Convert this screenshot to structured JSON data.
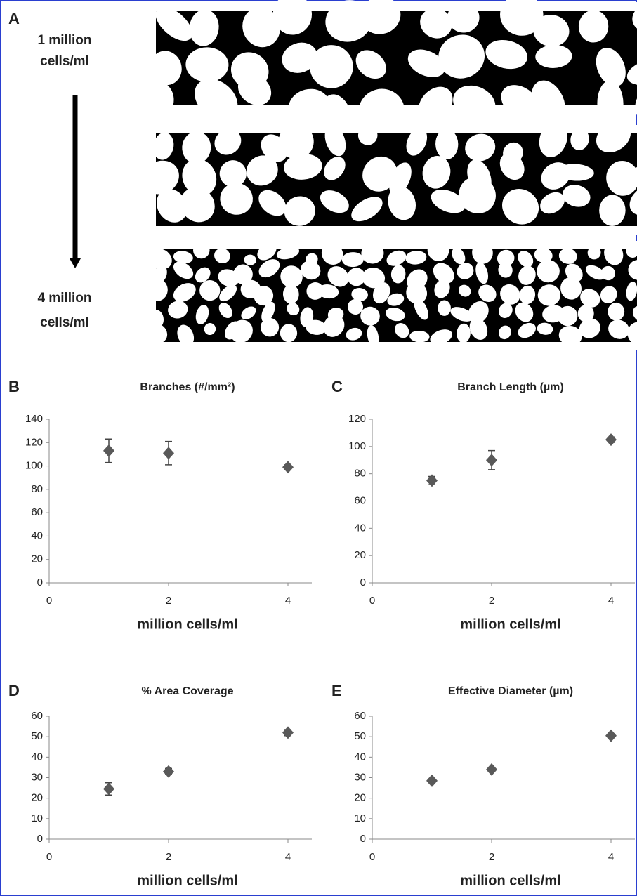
{
  "panel_a": {
    "label": "A",
    "top_lines": [
      "1 million",
      "cells/ml"
    ],
    "bottom_lines": [
      "4 million",
      "cells/ml"
    ]
  },
  "chart_data": [
    {
      "type": "scatter",
      "panel_label": "B",
      "title": "Branches (#/mm²)",
      "x_label": "million cells/ml",
      "x": [
        1,
        2,
        4
      ],
      "values": [
        113,
        111,
        99
      ],
      "errors": [
        10,
        10,
        2
      ],
      "color": "#595959",
      "xlim": [
        0,
        4.4
      ],
      "xticks": [
        0,
        2,
        4
      ],
      "ylim": [
        0,
        140
      ],
      "yticks": [
        0,
        20,
        40,
        60,
        80,
        100,
        120,
        140
      ]
    },
    {
      "type": "scatter",
      "panel_label": "C",
      "title": "Branch Length (µm)",
      "x_label": "million cells/ml",
      "x": [
        1,
        2,
        4
      ],
      "values": [
        75,
        90,
        105
      ],
      "errors": [
        3,
        7,
        2
      ],
      "color": "#595959",
      "xlim": [
        0,
        4.4
      ],
      "xticks": [
        0,
        2,
        4
      ],
      "ylim": [
        0,
        120
      ],
      "yticks": [
        0,
        20,
        40,
        60,
        80,
        100,
        120
      ]
    },
    {
      "type": "scatter",
      "panel_label": "D",
      "title": "% Area Coverage",
      "x_label": "million cells/ml",
      "x": [
        1,
        2,
        4
      ],
      "values": [
        24.5,
        33,
        52
      ],
      "errors": [
        3,
        1.5,
        1.5
      ],
      "color": "#595959",
      "xlim": [
        0,
        4.4
      ],
      "xticks": [
        0,
        2,
        4
      ],
      "ylim": [
        0,
        60
      ],
      "yticks": [
        0,
        10,
        20,
        30,
        40,
        50,
        60
      ]
    },
    {
      "type": "scatter",
      "panel_label": "E",
      "title": "Effective Diameter (µm)",
      "x_label": "million cells/ml",
      "x": [
        1,
        2,
        4
      ],
      "values": [
        28.5,
        34,
        50.5
      ],
      "errors": [
        1,
        1,
        1
      ],
      "color": "#595959",
      "xlim": [
        0,
        4.4
      ],
      "xticks": [
        0,
        2,
        4
      ],
      "ylim": [
        0,
        60
      ],
      "yticks": [
        0,
        10,
        20,
        30,
        40,
        50,
        60
      ]
    }
  ]
}
